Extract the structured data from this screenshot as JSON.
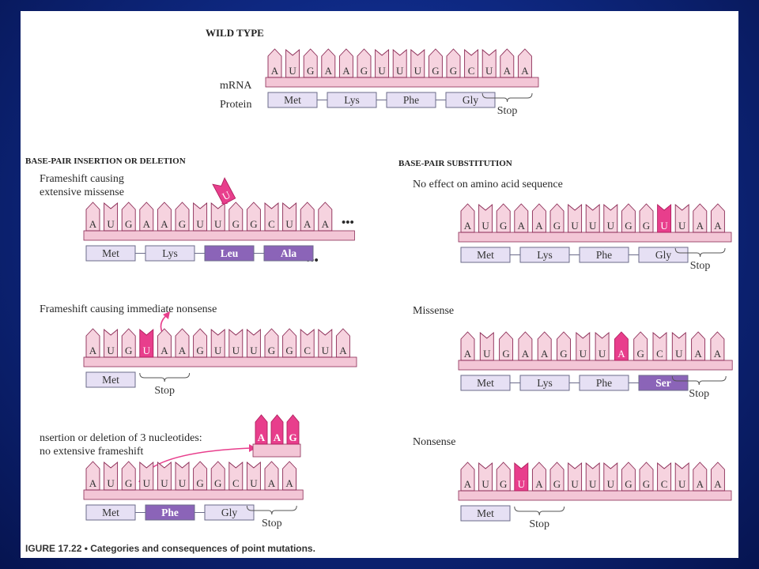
{
  "colors": {
    "base_fill": "#f6d3df",
    "base_stroke": "#8b2a55",
    "mutant_fill": "#e83e8c",
    "strip_fill": "#f3c6d6",
    "protein_fill": "#e6e0f4",
    "protein_stroke": "#6b6b8a",
    "protein_mutant_fill": "#8b64b8"
  },
  "figure": {
    "caption": "IGURE 17.22 • Categories and consequences of point mutations."
  },
  "sections": {
    "wild_type": {
      "title": "WILD TYPE",
      "label_mrna": "mRNA",
      "label_protein": "Protein",
      "bases": [
        "A",
        "U",
        "G",
        "A",
        "A",
        "G",
        "U",
        "U",
        "U",
        "G",
        "G",
        "C",
        "U",
        "A",
        "A"
      ],
      "mutant": [],
      "proteins": [
        {
          "label": "Met",
          "mutant": false
        },
        {
          "label": "Lys",
          "mutant": false
        },
        {
          "label": "Phe",
          "mutant": false
        },
        {
          "label": "Gly",
          "mutant": false
        }
      ],
      "stop_label": "Stop"
    },
    "insertion_header": "BASE-PAIR INSERTION OR DELETION",
    "substitution_header": "BASE-PAIR SUBSTITUTION",
    "frameshift_missense": {
      "label_line1": "Frameshift causing",
      "label_line2": "extensive missense",
      "bases": [
        "A",
        "U",
        "G",
        "A",
        "A",
        "G",
        "U",
        "U",
        "G",
        "G",
        "C",
        "U",
        "A",
        "A"
      ],
      "mutant": [],
      "removed_base": "U",
      "ellipsis": "•••",
      "proteins": [
        {
          "label": "Met",
          "mutant": false
        },
        {
          "label": "Lys",
          "mutant": false
        },
        {
          "label": "Leu",
          "mutant": true
        },
        {
          "label": "Ala",
          "mutant": true
        }
      ],
      "protein_ellipsis": "•••"
    },
    "frameshift_nonsense": {
      "label": "Frameshift causing immediate nonsense",
      "bases": [
        "A",
        "U",
        "G",
        "U",
        "A",
        "A",
        "G",
        "U",
        "U",
        "U",
        "G",
        "G",
        "C",
        "U",
        "A"
      ],
      "mutant": [
        3
      ],
      "proteins": [
        {
          "label": "Met",
          "mutant": false
        }
      ],
      "stop_label": "Stop"
    },
    "insertion_three": {
      "label_line1": "nsertion or deletion of 3 nucleotides:",
      "label_line2": "no extensive frameshift",
      "bases": [
        "A",
        "U",
        "G",
        "U",
        "U",
        "U",
        "G",
        "G",
        "C",
        "U",
        "A",
        "A"
      ],
      "mutant": [],
      "removed_bases": [
        "A",
        "A",
        "G"
      ],
      "proteins": [
        {
          "label": "Met",
          "mutant": false
        },
        {
          "label": "Phe",
          "mutant": true
        },
        {
          "label": "Gly",
          "mutant": false
        }
      ],
      "stop_label": "Stop"
    },
    "no_effect": {
      "label": "No effect on amino acid sequence",
      "bases": [
        "A",
        "U",
        "G",
        "A",
        "A",
        "G",
        "U",
        "U",
        "U",
        "G",
        "G",
        "U",
        "U",
        "A",
        "A"
      ],
      "mutant": [
        11
      ],
      "proteins": [
        {
          "label": "Met",
          "mutant": false
        },
        {
          "label": "Lys",
          "mutant": false
        },
        {
          "label": "Phe",
          "mutant": false
        },
        {
          "label": "Gly",
          "mutant": false
        }
      ],
      "stop_label": "Stop"
    },
    "missense": {
      "label": "Missense",
      "bases": [
        "A",
        "U",
        "G",
        "A",
        "A",
        "G",
        "U",
        "U",
        "A",
        "G",
        "C",
        "U",
        "A",
        "A"
      ],
      "mutant": [
        8
      ],
      "proteins": [
        {
          "label": "Met",
          "mutant": false
        },
        {
          "label": "Lys",
          "mutant": false
        },
        {
          "label": "Phe",
          "mutant": false
        },
        {
          "label": "Ser",
          "mutant": true
        }
      ],
      "stop_label": "Stop"
    },
    "nonsense": {
      "label": "Nonsense",
      "bases": [
        "A",
        "U",
        "G",
        "U",
        "A",
        "G",
        "U",
        "U",
        "U",
        "G",
        "G",
        "C",
        "U",
        "A",
        "A"
      ],
      "mutant": [
        3
      ],
      "proteins": [
        {
          "label": "Met",
          "mutant": false
        }
      ],
      "stop_label": "Stop"
    }
  }
}
